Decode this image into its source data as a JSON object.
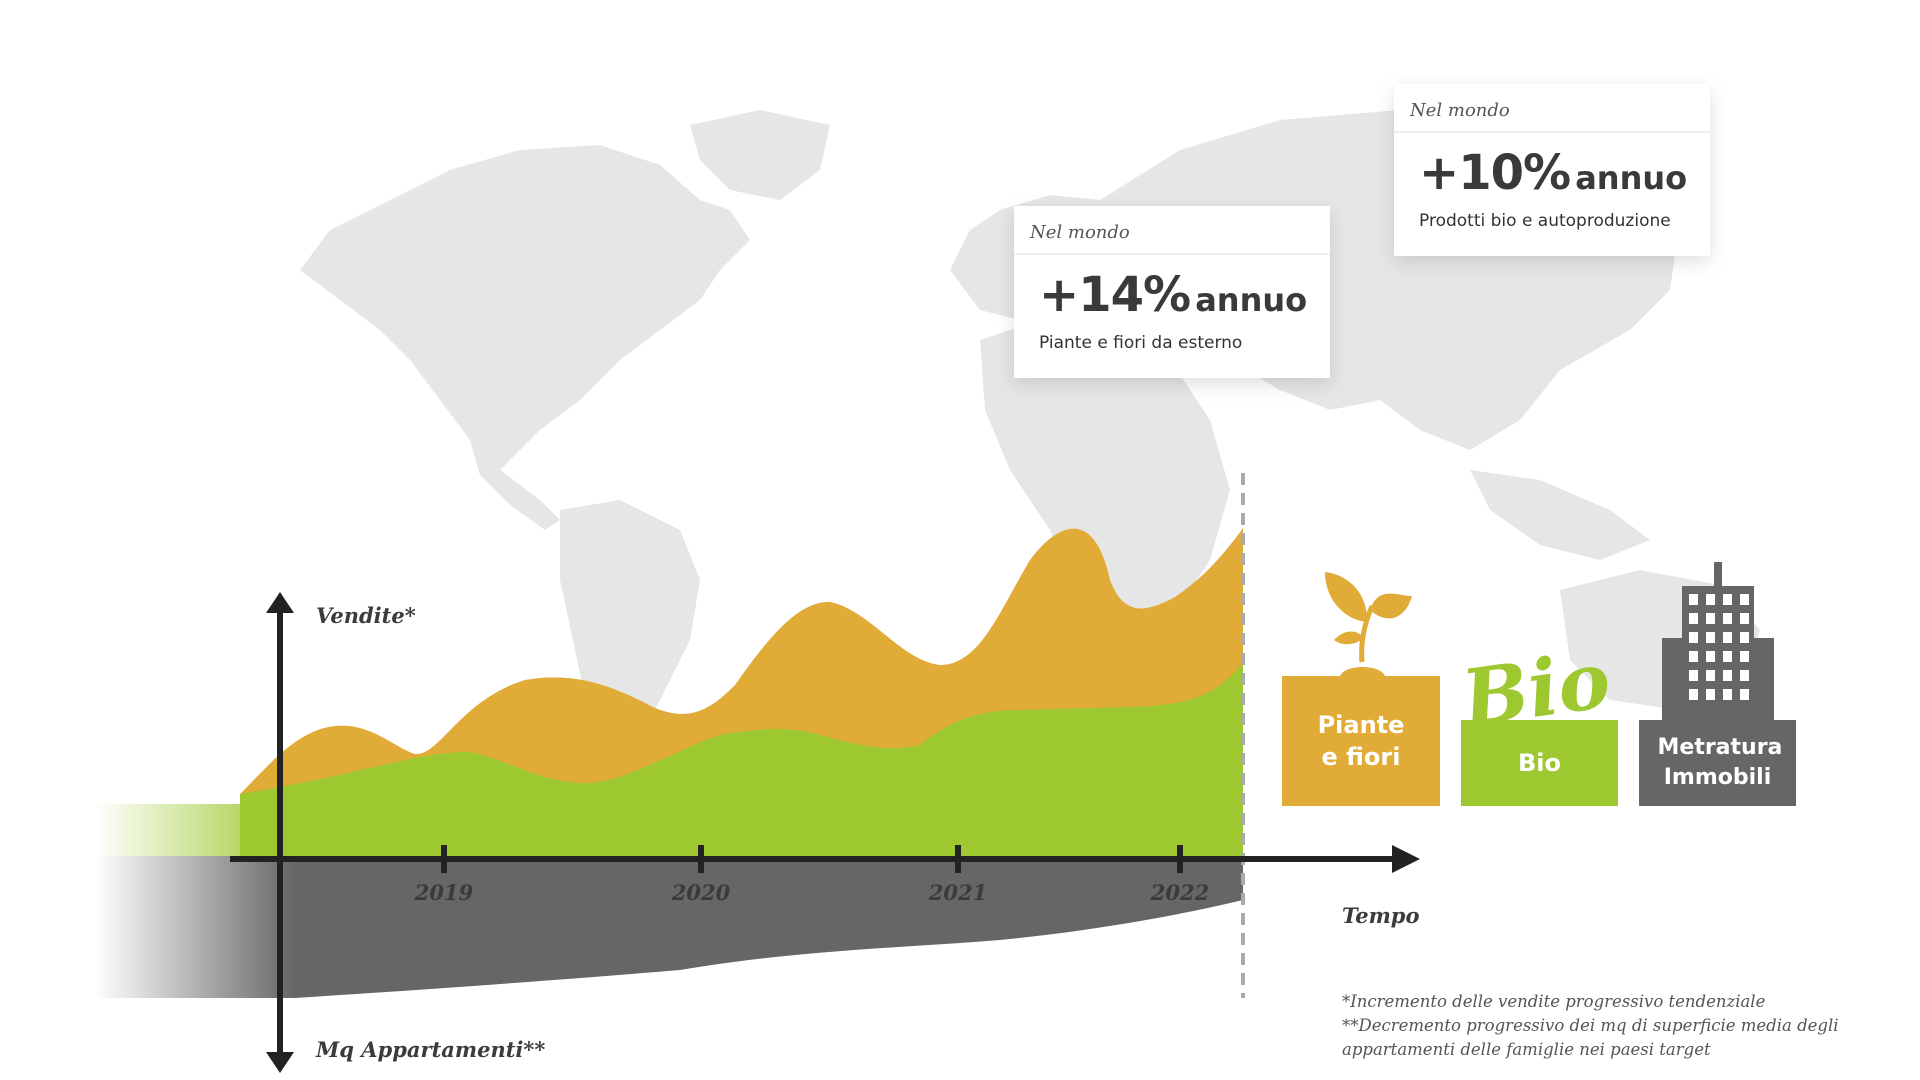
{
  "chart_data": {
    "type": "area",
    "x_label": "Tempo",
    "y_label_up": "Vendite*",
    "y_label_down": "Mq Appartamenti**",
    "tick_labels": [
      "2019",
      "2020",
      "2021",
      "2022"
    ],
    "series": [
      {
        "name": "Piante e fiori",
        "color": "#e1ab37"
      },
      {
        "name": "Bio",
        "color": "#9ec830"
      },
      {
        "name": "Metratura Immobili",
        "color": "#666666"
      }
    ]
  },
  "cards": [
    {
      "header": "Nel mondo",
      "value": "+14%",
      "unit": "annuo",
      "caption": "Piante e fiori da esterno"
    },
    {
      "header": "Nel mondo",
      "value": "+10%",
      "unit": "annuo",
      "caption": "Prodotti bio e autoproduzione"
    }
  ],
  "categories": [
    {
      "label": "Piante e fiori",
      "color": "#e1ab37",
      "icon": "sprout-icon"
    },
    {
      "label": "Bio",
      "color": "#9ec830",
      "icon": "bio-logo-icon",
      "logo_text": "Bio"
    },
    {
      "label": "Metratura Immobili",
      "color": "#666666",
      "icon": "building-icon"
    }
  ],
  "footnotes": [
    "*Incremento delle vendite progressivo tendenziale",
    "**Decremento progressivo dei mq di superficie media degli",
    "appartamenti delle famiglie nei paesi target"
  ]
}
